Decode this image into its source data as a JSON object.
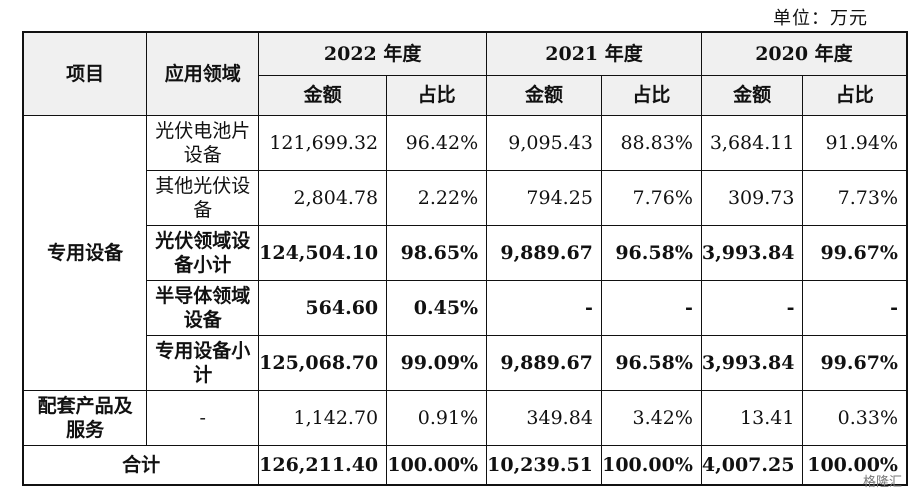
{
  "unit_label": "单位：万元",
  "header": {
    "project": "项目",
    "application": "应用领域",
    "years": [
      "2022 年度",
      "2021 年度",
      "2020 年度"
    ],
    "amount": "金额",
    "ratio": "占比"
  },
  "groups": {
    "special_equipment": "专用设备",
    "supporting": "配套产品及服务",
    "total": "合计"
  },
  "rows": [
    {
      "label": "光伏电池片设备",
      "values": [
        "121,699.32",
        "96.42%",
        "9,095.43",
        "88.83%",
        "3,684.11",
        "91.94%"
      ]
    },
    {
      "label": "其他光伏设备",
      "values": [
        "2,804.78",
        "2.22%",
        "794.25",
        "7.76%",
        "309.73",
        "7.73%"
      ]
    },
    {
      "label": "光伏领域设备小计",
      "values": [
        "124,504.10",
        "98.65%",
        "9,889.67",
        "96.58%",
        "3,993.84",
        "99.67%"
      ]
    },
    {
      "label": "半导体领域设备",
      "values": [
        "564.60",
        "0.45%",
        "-",
        "-",
        "-",
        "-"
      ]
    },
    {
      "label": "专用设备小计",
      "values": [
        "125,068.70",
        "99.09%",
        "9,889.67",
        "96.58%",
        "3,993.84",
        "99.67%"
      ]
    },
    {
      "label": "-",
      "values": [
        "1,142.70",
        "0.91%",
        "349.84",
        "3.42%",
        "13.41",
        "0.33%"
      ]
    },
    {
      "label": "合计",
      "values": [
        "126,211.40",
        "100.00%",
        "10,239.51",
        "100.00%",
        "4,007.25",
        "100.00%"
      ]
    }
  ],
  "watermark": "格隆汇"
}
